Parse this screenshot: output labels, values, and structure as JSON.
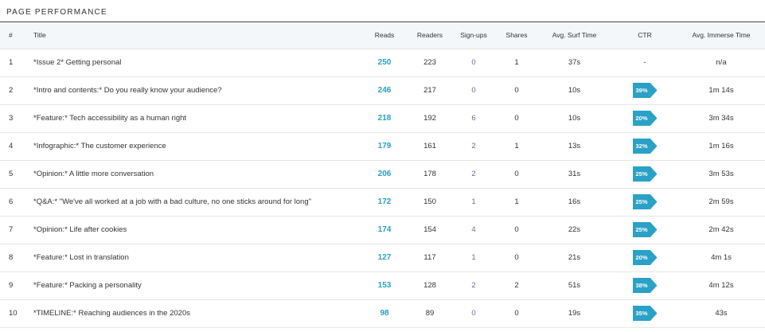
{
  "section_title": "PAGE PERFORMANCE",
  "columns": {
    "num": "#",
    "title": "Title",
    "reads": "Reads",
    "readers": "Readers",
    "signups": "Sign-ups",
    "shares": "Shares",
    "surf": "Avg. Surf Time",
    "ctr": "CTR",
    "immerse": "Avg. Immerse Time"
  },
  "colors": {
    "link": "#2a9fc2",
    "signups": "#6b6aa5",
    "ctr_badge": "#2aa1c7",
    "header_bg": "#f4f7f9"
  },
  "rows": [
    {
      "num": "1",
      "title": "*Issue 2* Getting personal",
      "reads": "250",
      "readers": "223",
      "signups": "0",
      "shares": "1",
      "surf": "37s",
      "ctr": "-",
      "ctr_badge": false,
      "immerse": "n/a"
    },
    {
      "num": "2",
      "title": "*Intro and contents:* Do you really know your audience?",
      "reads": "246",
      "readers": "217",
      "signups": "0",
      "shares": "0",
      "surf": "10s",
      "ctr": "39%",
      "ctr_badge": true,
      "immerse": "1m 14s"
    },
    {
      "num": "3",
      "title": "*Feature:* Tech accessibility as a human right",
      "reads": "218",
      "readers": "192",
      "signups": "6",
      "shares": "0",
      "surf": "10s",
      "ctr": "20%",
      "ctr_badge": true,
      "immerse": "3m 34s"
    },
    {
      "num": "4",
      "title": "*Infographic:* The customer experience",
      "reads": "179",
      "readers": "161",
      "signups": "2",
      "shares": "1",
      "surf": "13s",
      "ctr": "32%",
      "ctr_badge": true,
      "immerse": "1m 16s"
    },
    {
      "num": "5",
      "title": "*Opinion:* A little more conversation",
      "reads": "206",
      "readers": "178",
      "signups": "2",
      "shares": "0",
      "surf": "31s",
      "ctr": "25%",
      "ctr_badge": true,
      "immerse": "3m 53s"
    },
    {
      "num": "6",
      "title": "*Q&A:* \"We've all worked at a job with a bad culture, no one sticks around for long\"",
      "reads": "172",
      "readers": "150",
      "signups": "1",
      "shares": "1",
      "surf": "16s",
      "ctr": "25%",
      "ctr_badge": true,
      "immerse": "2m 59s"
    },
    {
      "num": "7",
      "title": "*Opinion:* Life after cookies",
      "reads": "174",
      "readers": "154",
      "signups": "4",
      "shares": "0",
      "surf": "22s",
      "ctr": "25%",
      "ctr_badge": true,
      "immerse": "2m 42s"
    },
    {
      "num": "8",
      "title": "*Feature:* Lost in translation",
      "reads": "127",
      "readers": "117",
      "signups": "1",
      "shares": "0",
      "surf": "21s",
      "ctr": "20%",
      "ctr_badge": true,
      "immerse": "4m 1s"
    },
    {
      "num": "9",
      "title": "*Feature:* Packing a personality",
      "reads": "153",
      "readers": "128",
      "signups": "2",
      "shares": "2",
      "surf": "51s",
      "ctr": "38%",
      "ctr_badge": true,
      "immerse": "4m 12s"
    },
    {
      "num": "10",
      "title": "*TIMELINE:* Reaching audiences in the 2020s",
      "reads": "98",
      "readers": "89",
      "signups": "0",
      "shares": "0",
      "surf": "19s",
      "ctr": "35%",
      "ctr_badge": true,
      "immerse": "43s"
    }
  ]
}
